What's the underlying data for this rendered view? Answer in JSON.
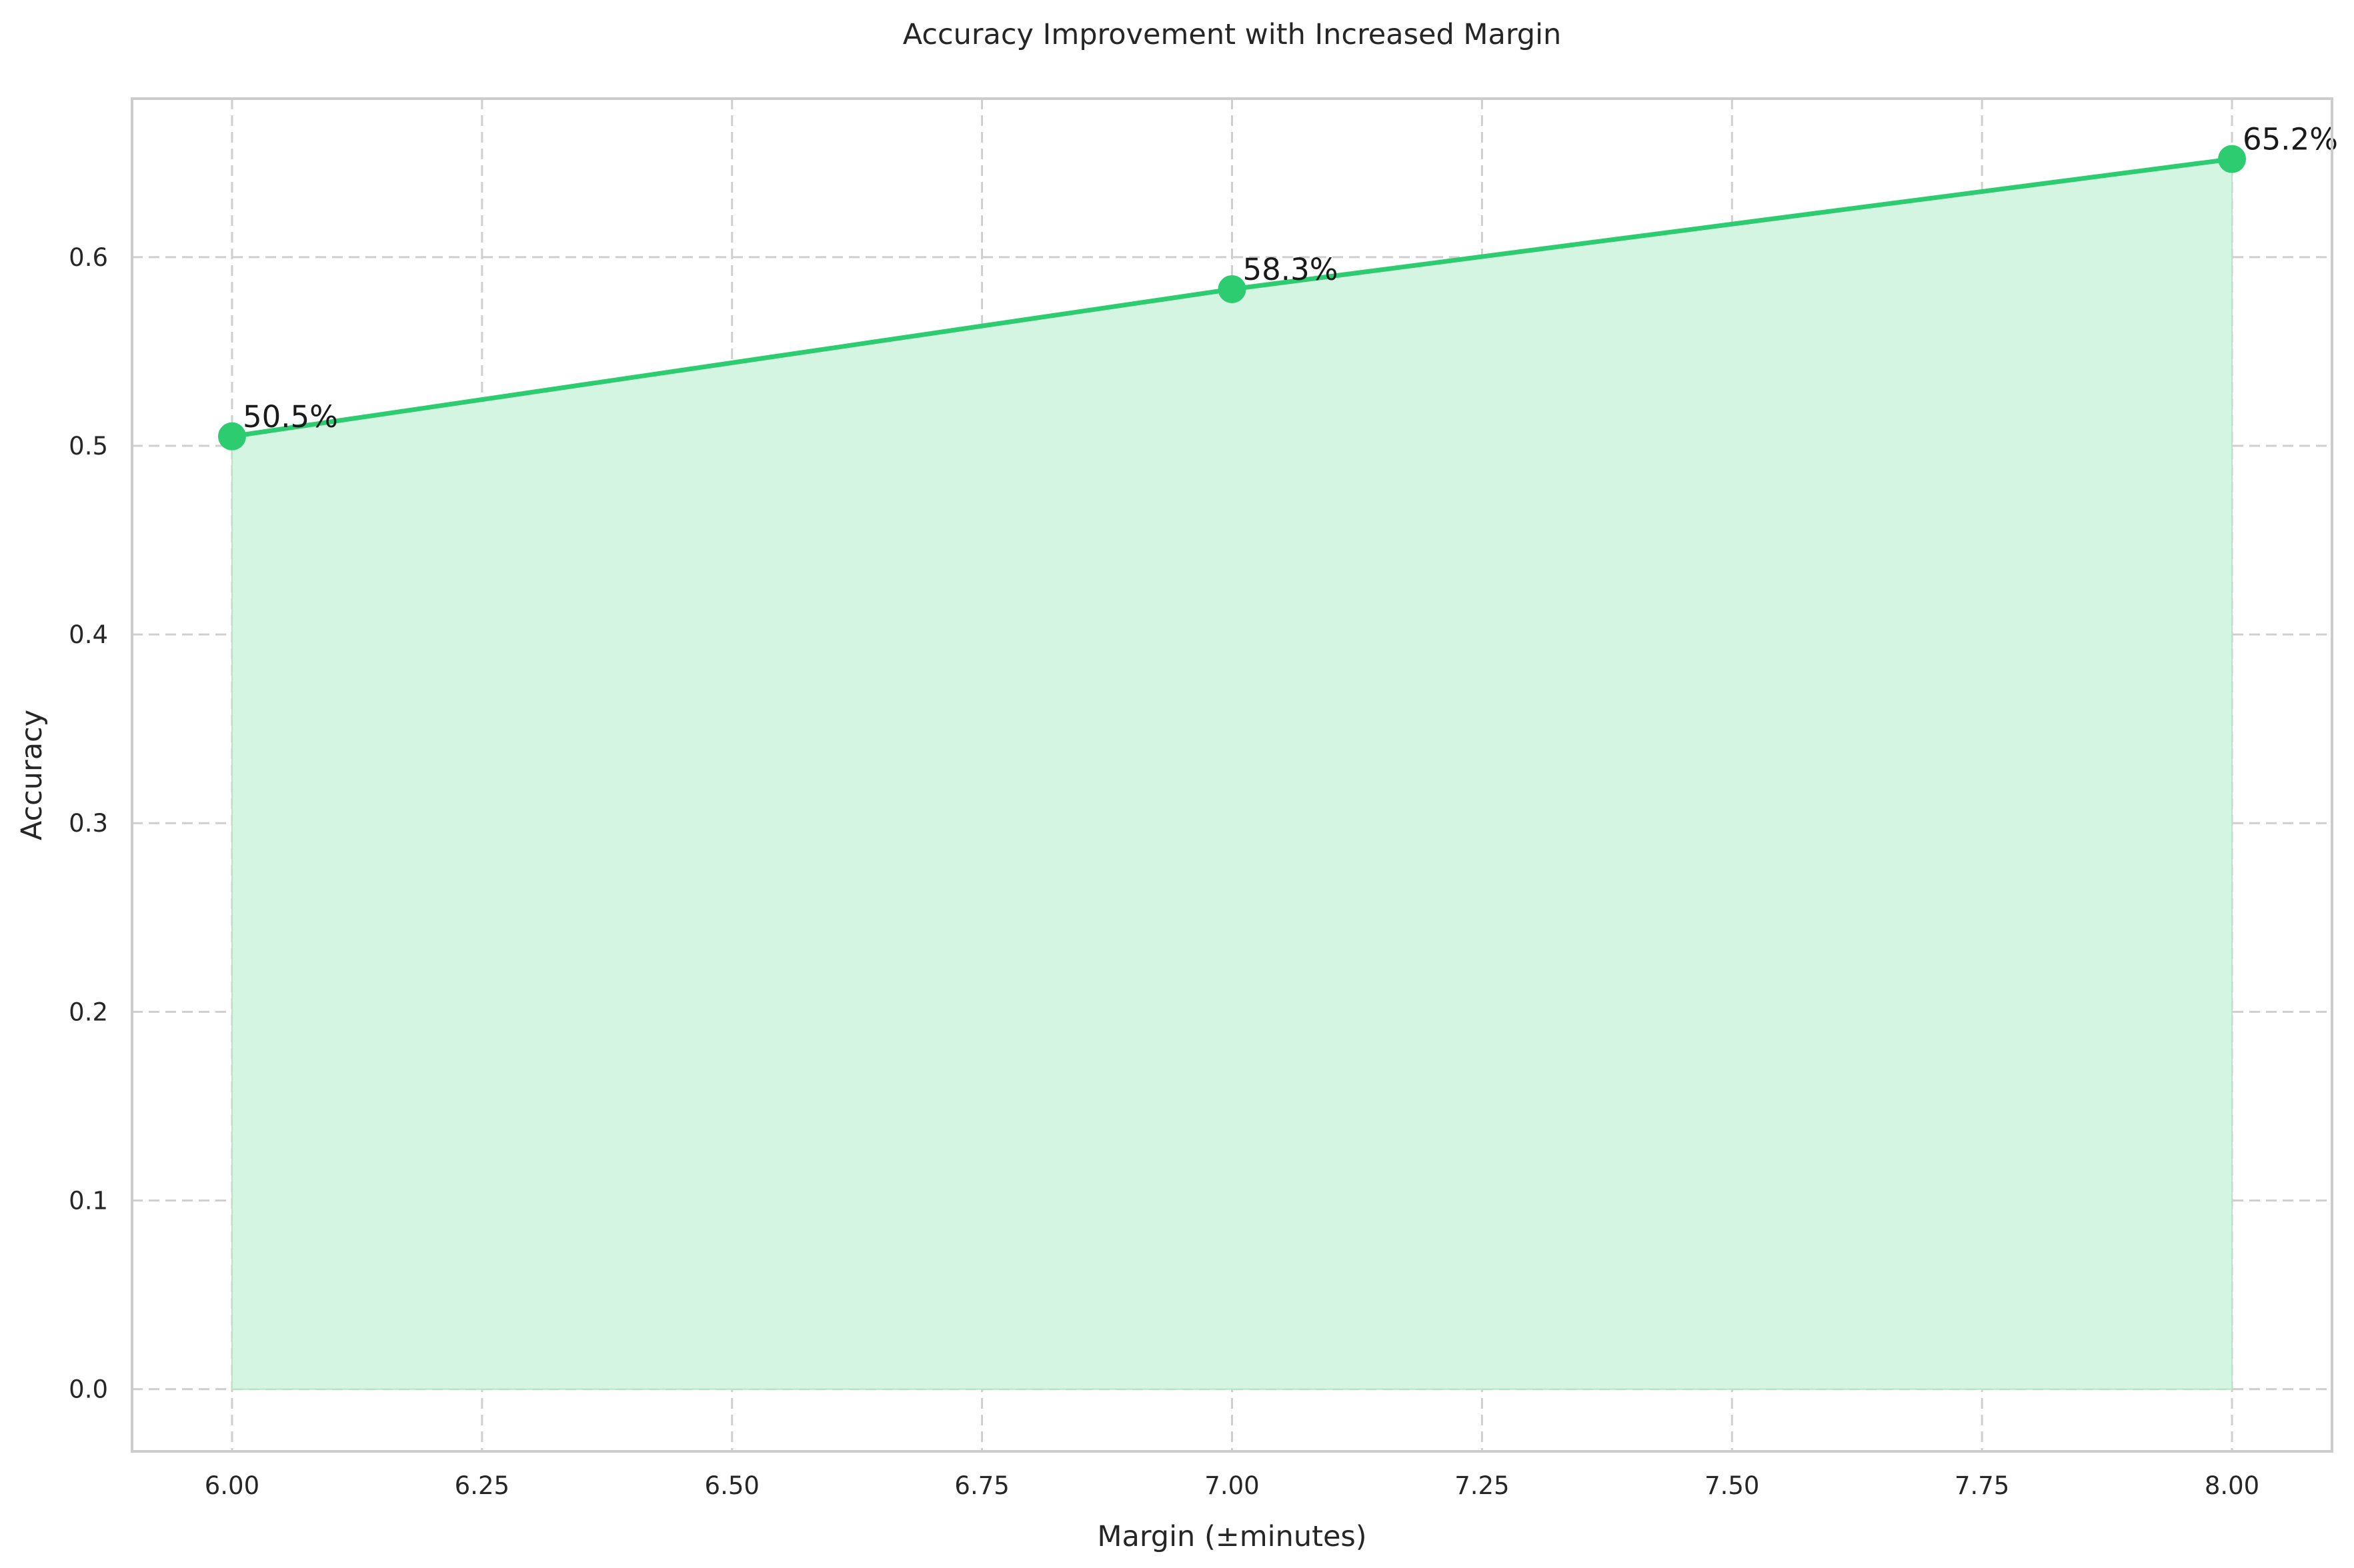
{
  "chart_data": {
    "type": "line",
    "title": "Accuracy Improvement with Increased Margin",
    "xlabel": "Margin (±minutes)",
    "ylabel": "Accuracy",
    "x": [
      6.0,
      7.0,
      8.0
    ],
    "series": [
      {
        "values": [
          0.505,
          0.583,
          0.652
        ],
        "labels": [
          "50.5%",
          "58.3%",
          "65.2%"
        ],
        "color": "#2ecc71",
        "fill_color": "#d5f5e3",
        "fill_to_zero": true,
        "markers": true
      }
    ],
    "xlim": [
      5.9,
      8.1
    ],
    "ylim": [
      -0.033,
      0.684
    ],
    "xticks": [
      "6.00",
      "6.25",
      "6.50",
      "6.75",
      "7.00",
      "7.25",
      "7.50",
      "7.75",
      "8.00"
    ],
    "yticks": [
      "0.0",
      "0.1",
      "0.2",
      "0.3",
      "0.4",
      "0.5",
      "0.6"
    ],
    "grid": true
  }
}
